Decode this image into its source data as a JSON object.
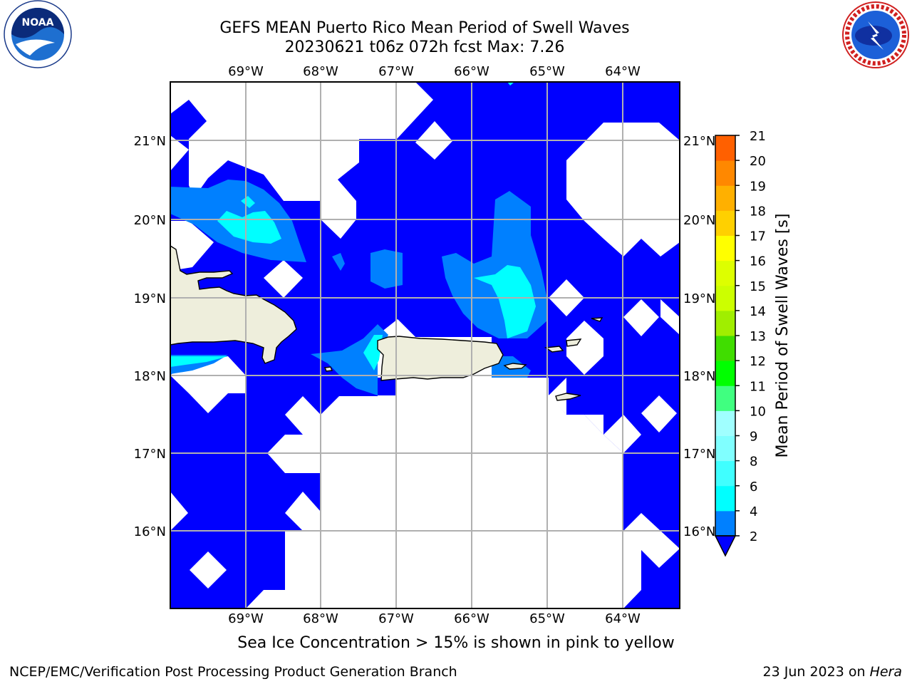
{
  "title_line1": "GEFS MEAN Puerto Rico Mean Period of Swell Waves",
  "title_line2": "20230621 t06z 072h fcst   Max: 7.26",
  "note": "Sea Ice Concentration > 15% is shown in pink to yellow",
  "credit": "NCEP/EMC/Verification Post Processing Product Generation Branch",
  "date_prefix": "23 Jun 2023 on ",
  "date_machine": "Hera",
  "logos": {
    "left": "noaa-logo",
    "right": "nws-logo"
  },
  "map": {
    "lon_labels": [
      "69°W",
      "68°W",
      "67°W",
      "66°W",
      "65°W",
      "64°W"
    ],
    "lat_labels": [
      "21°N",
      "20°N",
      "19°N",
      "18°N",
      "17°N",
      "16°N"
    ],
    "land_color": "#eeeedc",
    "ocean_low_color": "#0000ff",
    "grid_color": "#b0b0b0"
  },
  "colorbar": {
    "label": "Mean Period of Swell Waves [s]",
    "ticks": [
      "2",
      "4",
      "6",
      "8",
      "9",
      "10",
      "11",
      "12",
      "13",
      "14",
      "15",
      "16",
      "17",
      "18",
      "19",
      "20",
      "21"
    ],
    "under_color": "#0000ff",
    "colors": [
      "#0080ff",
      "#00ffff",
      "#40ffff",
      "#80ffff",
      "#a0ffff",
      "#40ff80",
      "#00ff00",
      "#40dd00",
      "#a0ee00",
      "#ccff00",
      "#ddff00",
      "#ffff00",
      "#ffd000",
      "#ffb000",
      "#ff8800",
      "#ff6000",
      "#ff3000",
      "#ff0000"
    ]
  }
}
